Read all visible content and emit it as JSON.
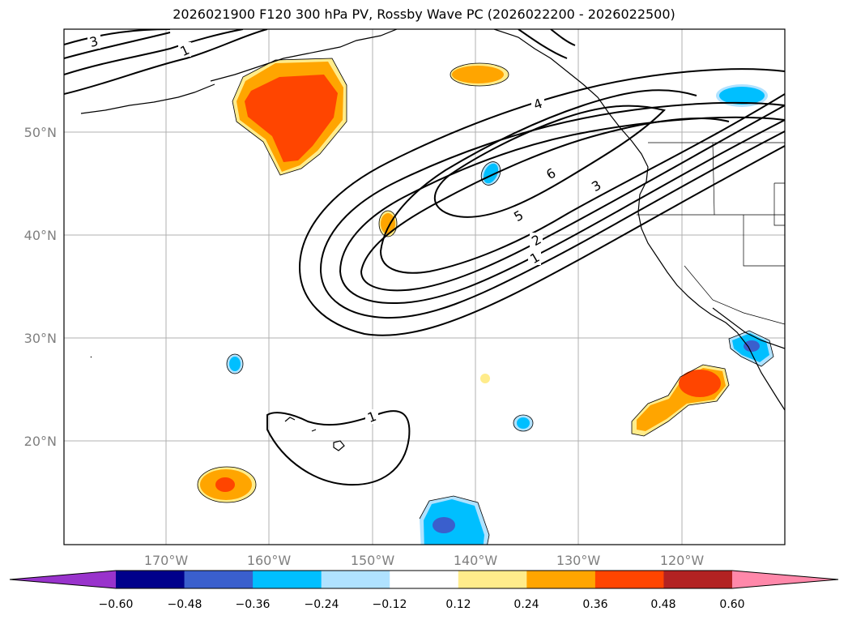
{
  "title": "2026021900 F120 300 hPa PV, Rossby Wave PC (2026022200 - 2026022500)",
  "lat_labels": [
    "50°N",
    "40°N",
    "30°N",
    "20°N"
  ],
  "lon_labels": [
    "170°W",
    "160°W",
    "150°W",
    "140°W",
    "130°W",
    "120°W"
  ],
  "contour_labels": {
    "c3_nw": "3",
    "c1_nw": "1",
    "c4": "4",
    "c6": "6",
    "c3_e": "3",
    "c5": "5",
    "c2": "2",
    "c1_e": "1",
    "c1_hawaii": "1"
  },
  "colorbar": {
    "ticks": [
      "−0.60",
      "−0.48",
      "−0.36",
      "−0.24",
      "−0.12",
      "0.12",
      "0.24",
      "0.36",
      "0.48",
      "0.60"
    ],
    "colors": [
      "#9933cc",
      "#00008b",
      "#3a5fcd",
      "#00bfff",
      "#b0e2ff",
      "#ffffff",
      "#ffec8b",
      "#ffa500",
      "#ff4500",
      "#b22222",
      "#ff88aa"
    ]
  },
  "colors": {
    "frame": "#000000",
    "grid": "#b0b0b0"
  }
}
